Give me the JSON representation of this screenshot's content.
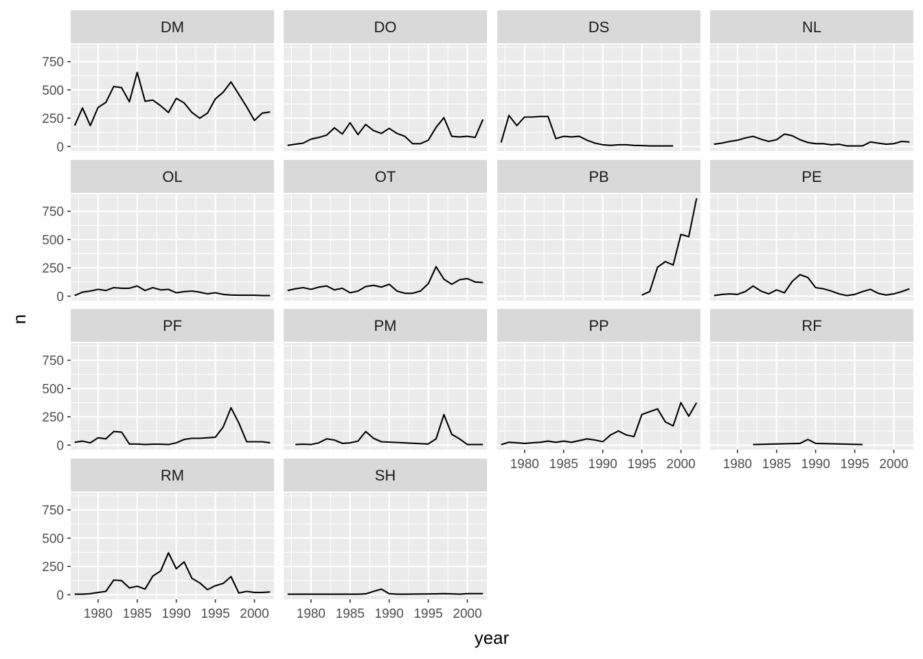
{
  "chart_data": {
    "type": "line",
    "layout": "facet_wrap",
    "ncol": 4,
    "xlabel": "year",
    "ylabel": "n",
    "x_ticks": [
      1980,
      1985,
      1990,
      1995,
      2000
    ],
    "y_ticks": [
      0,
      250,
      500,
      750
    ],
    "xlim": [
      1976.5,
      2002.5
    ],
    "ylim": [
      -40,
      900
    ],
    "grid": true,
    "colors": {
      "panel_bg": "#EBEBEB",
      "strip_bg": "#D9D9D9",
      "grid_major": "#FFFFFF",
      "line": "#000000",
      "tick_text": "#4D4D4D"
    },
    "panels": [
      {
        "name": "DM",
        "x": [
          1977,
          1978,
          1979,
          1980,
          1981,
          1982,
          1983,
          1984,
          1985,
          1986,
          1987,
          1988,
          1989,
          1990,
          1991,
          1992,
          1993,
          1994,
          1995,
          1996,
          1997,
          1998,
          1999,
          2000,
          2001,
          2002
        ],
        "y": [
          185,
          340,
          185,
          345,
          390,
          530,
          520,
          395,
          655,
          400,
          410,
          360,
          300,
          425,
          385,
          300,
          250,
          295,
          420,
          480,
          570,
          460,
          350,
          230,
          295,
          305
        ]
      },
      {
        "name": "DO",
        "x": [
          1977,
          1978,
          1979,
          1980,
          1981,
          1982,
          1983,
          1984,
          1985,
          1986,
          1987,
          1988,
          1989,
          1990,
          1991,
          1992,
          1993,
          1994,
          1995,
          1996,
          1997,
          1998,
          1999,
          2000,
          2001,
          2002
        ],
        "y": [
          10,
          20,
          30,
          65,
          80,
          100,
          165,
          110,
          210,
          105,
          195,
          140,
          115,
          160,
          115,
          90,
          25,
          25,
          55,
          170,
          255,
          90,
          85,
          90,
          80,
          240
        ]
      },
      {
        "name": "DS",
        "x": [
          1977,
          1978,
          1979,
          1980,
          1981,
          1982,
          1983,
          1984,
          1985,
          1986,
          1987,
          1988,
          1989,
          1990,
          1991,
          1992,
          1993,
          1994,
          1995,
          1996,
          1997,
          1998,
          1999
        ],
        "y": [
          35,
          275,
          185,
          260,
          260,
          265,
          265,
          70,
          90,
          85,
          90,
          55,
          30,
          15,
          10,
          15,
          15,
          10,
          8,
          5,
          5,
          5,
          5
        ]
      },
      {
        "name": "NL",
        "x": [
          1977,
          1978,
          1979,
          1980,
          1981,
          1982,
          1983,
          1984,
          1985,
          1986,
          1987,
          1988,
          1989,
          1990,
          1991,
          1992,
          1993,
          1994,
          1995,
          1996,
          1997,
          1998,
          1999,
          2000,
          2001,
          2002
        ],
        "y": [
          20,
          30,
          45,
          55,
          75,
          90,
          65,
          45,
          60,
          110,
          95,
          60,
          35,
          25,
          25,
          15,
          20,
          5,
          5,
          5,
          40,
          30,
          20,
          25,
          45,
          40
        ]
      },
      {
        "name": "OL",
        "x": [
          1977,
          1978,
          1979,
          1980,
          1981,
          1982,
          1983,
          1984,
          1985,
          1986,
          1987,
          1988,
          1989,
          1990,
          1991,
          1992,
          1993,
          1994,
          1995,
          1996,
          1997,
          1998,
          1999,
          2000,
          2001,
          2002
        ],
        "y": [
          5,
          35,
          45,
          60,
          50,
          75,
          70,
          70,
          90,
          50,
          75,
          55,
          60,
          30,
          40,
          45,
          35,
          20,
          30,
          15,
          10,
          8,
          8,
          8,
          5,
          5
        ]
      },
      {
        "name": "OT",
        "x": [
          1977,
          1978,
          1979,
          1980,
          1981,
          1982,
          1983,
          1984,
          1985,
          1986,
          1987,
          1988,
          1989,
          1990,
          1991,
          1992,
          1993,
          1994,
          1995,
          1996,
          1997,
          1998,
          1999,
          2000,
          2001,
          2002
        ],
        "y": [
          50,
          65,
          75,
          60,
          80,
          90,
          55,
          70,
          30,
          45,
          85,
          95,
          80,
          105,
          45,
          25,
          25,
          45,
          110,
          260,
          150,
          105,
          145,
          155,
          125,
          120
        ]
      },
      {
        "name": "PB",
        "x": [
          1995,
          1996,
          1997,
          1998,
          1999,
          2000,
          2001,
          2002
        ],
        "y": [
          10,
          40,
          255,
          305,
          275,
          545,
          525,
          865
        ]
      },
      {
        "name": "PE",
        "x": [
          1977,
          1978,
          1979,
          1980,
          1981,
          1982,
          1983,
          1984,
          1985,
          1986,
          1987,
          1988,
          1989,
          1990,
          1991,
          1992,
          1993,
          1994,
          1995,
          1996,
          1997,
          1998,
          1999,
          2000,
          2001,
          2002
        ],
        "y": [
          5,
          15,
          20,
          15,
          40,
          90,
          45,
          20,
          55,
          30,
          130,
          190,
          165,
          75,
          65,
          45,
          20,
          5,
          15,
          40,
          60,
          25,
          10,
          20,
          40,
          65
        ]
      },
      {
        "name": "PF",
        "x": [
          1977,
          1978,
          1979,
          1980,
          1981,
          1982,
          1983,
          1984,
          1985,
          1986,
          1987,
          1988,
          1989,
          1990,
          1991,
          1992,
          1993,
          1994,
          1995,
          1996,
          1997,
          1998,
          1999,
          2000,
          2001,
          2002
        ],
        "y": [
          25,
          35,
          20,
          65,
          55,
          120,
          115,
          10,
          10,
          5,
          8,
          8,
          5,
          20,
          50,
          60,
          60,
          65,
          70,
          160,
          330,
          195,
          30,
          30,
          30,
          20
        ]
      },
      {
        "name": "PM",
        "x": [
          1978,
          1979,
          1980,
          1981,
          1982,
          1983,
          1984,
          1985,
          1986,
          1987,
          1988,
          1989,
          1995,
          1996,
          1997,
          1998,
          1999,
          2000,
          2001,
          2002
        ],
        "y": [
          5,
          8,
          5,
          20,
          55,
          45,
          15,
          20,
          35,
          120,
          60,
          30,
          10,
          55,
          270,
          95,
          55,
          5,
          5,
          5
        ]
      },
      {
        "name": "PP",
        "x": [
          1977,
          1978,
          1979,
          1980,
          1981,
          1982,
          1983,
          1984,
          1985,
          1986,
          1987,
          1988,
          1989,
          1990,
          1991,
          1992,
          1993,
          1994,
          1995,
          1996,
          1997,
          1998,
          1999,
          2000,
          2001,
          2002
        ],
        "y": [
          5,
          25,
          20,
          15,
          20,
          25,
          35,
          25,
          35,
          25,
          40,
          55,
          45,
          30,
          90,
          125,
          90,
          75,
          270,
          295,
          320,
          205,
          170,
          375,
          255,
          375
        ]
      },
      {
        "name": "RF",
        "x": [
          1982,
          1988,
          1989,
          1990,
          1996
        ],
        "y": [
          5,
          15,
          50,
          15,
          5
        ]
      },
      {
        "name": "RM",
        "x": [
          1977,
          1978,
          1979,
          1980,
          1981,
          1982,
          1983,
          1984,
          1985,
          1986,
          1987,
          1988,
          1989,
          1990,
          1991,
          1992,
          1993,
          1994,
          1995,
          1996,
          1997,
          1998,
          1999,
          2000,
          2001,
          2002
        ],
        "y": [
          5,
          5,
          10,
          20,
          30,
          130,
          125,
          60,
          75,
          50,
          165,
          210,
          370,
          230,
          290,
          145,
          105,
          45,
          80,
          100,
          160,
          15,
          30,
          20,
          20,
          25
        ]
      },
      {
        "name": "SH",
        "x": [
          1977,
          1986,
          1987,
          1988,
          1989,
          1990,
          1991,
          1992,
          1996,
          1997,
          1998,
          1999,
          2000,
          2001,
          2002
        ],
        "y": [
          5,
          5,
          8,
          30,
          50,
          10,
          5,
          5,
          8,
          10,
          8,
          5,
          10,
          10,
          10
        ]
      }
    ]
  }
}
